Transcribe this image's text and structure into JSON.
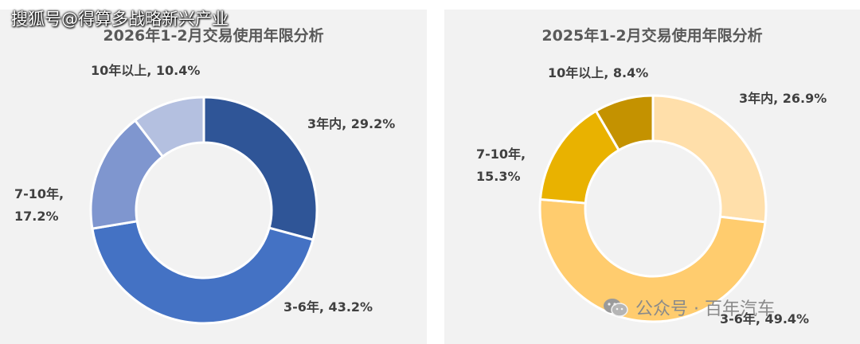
{
  "watermark_top": "搜狐号@得算多战略新兴产业",
  "watermark_bottom": "公众号 · 百年汽车",
  "chart_data": [
    {
      "type": "pie",
      "donut": true,
      "title": "2026年1-2月交易使用年限分析",
      "slices": [
        {
          "label": "3年内",
          "value": 29.2,
          "text": "3年内, 29.2%",
          "color": "#2f5597"
        },
        {
          "label": "3-6年",
          "value": 43.2,
          "text": "3-6年, 43.2%",
          "color": "#4472c4"
        },
        {
          "label": "7-10年",
          "value": 17.2,
          "text_lines": [
            "7-10年,",
            "17.2%"
          ],
          "color": "#7f96cf"
        },
        {
          "label": "10年以上",
          "value": 10.4,
          "text": "10年以上, 10.4%",
          "color": "#b4c0e0"
        }
      ]
    },
    {
      "type": "pie",
      "donut": true,
      "title": "2025年1-2月交易使用年限分析",
      "slices": [
        {
          "label": "3年内",
          "value": 26.9,
          "text": "3年内, 26.9%",
          "color": "#ffdfaa"
        },
        {
          "label": "3-6年",
          "value": 49.4,
          "text": "3-6年, 49.4%",
          "color": "#ffcc6e"
        },
        {
          "label": "7-10年",
          "value": 15.3,
          "text_lines": [
            "7-10年,",
            "15.3%"
          ],
          "color": "#e9b200"
        },
        {
          "label": "10年以上",
          "value": 8.4,
          "text": "10年以上, 8.4%",
          "color": "#c49200"
        }
      ]
    }
  ]
}
